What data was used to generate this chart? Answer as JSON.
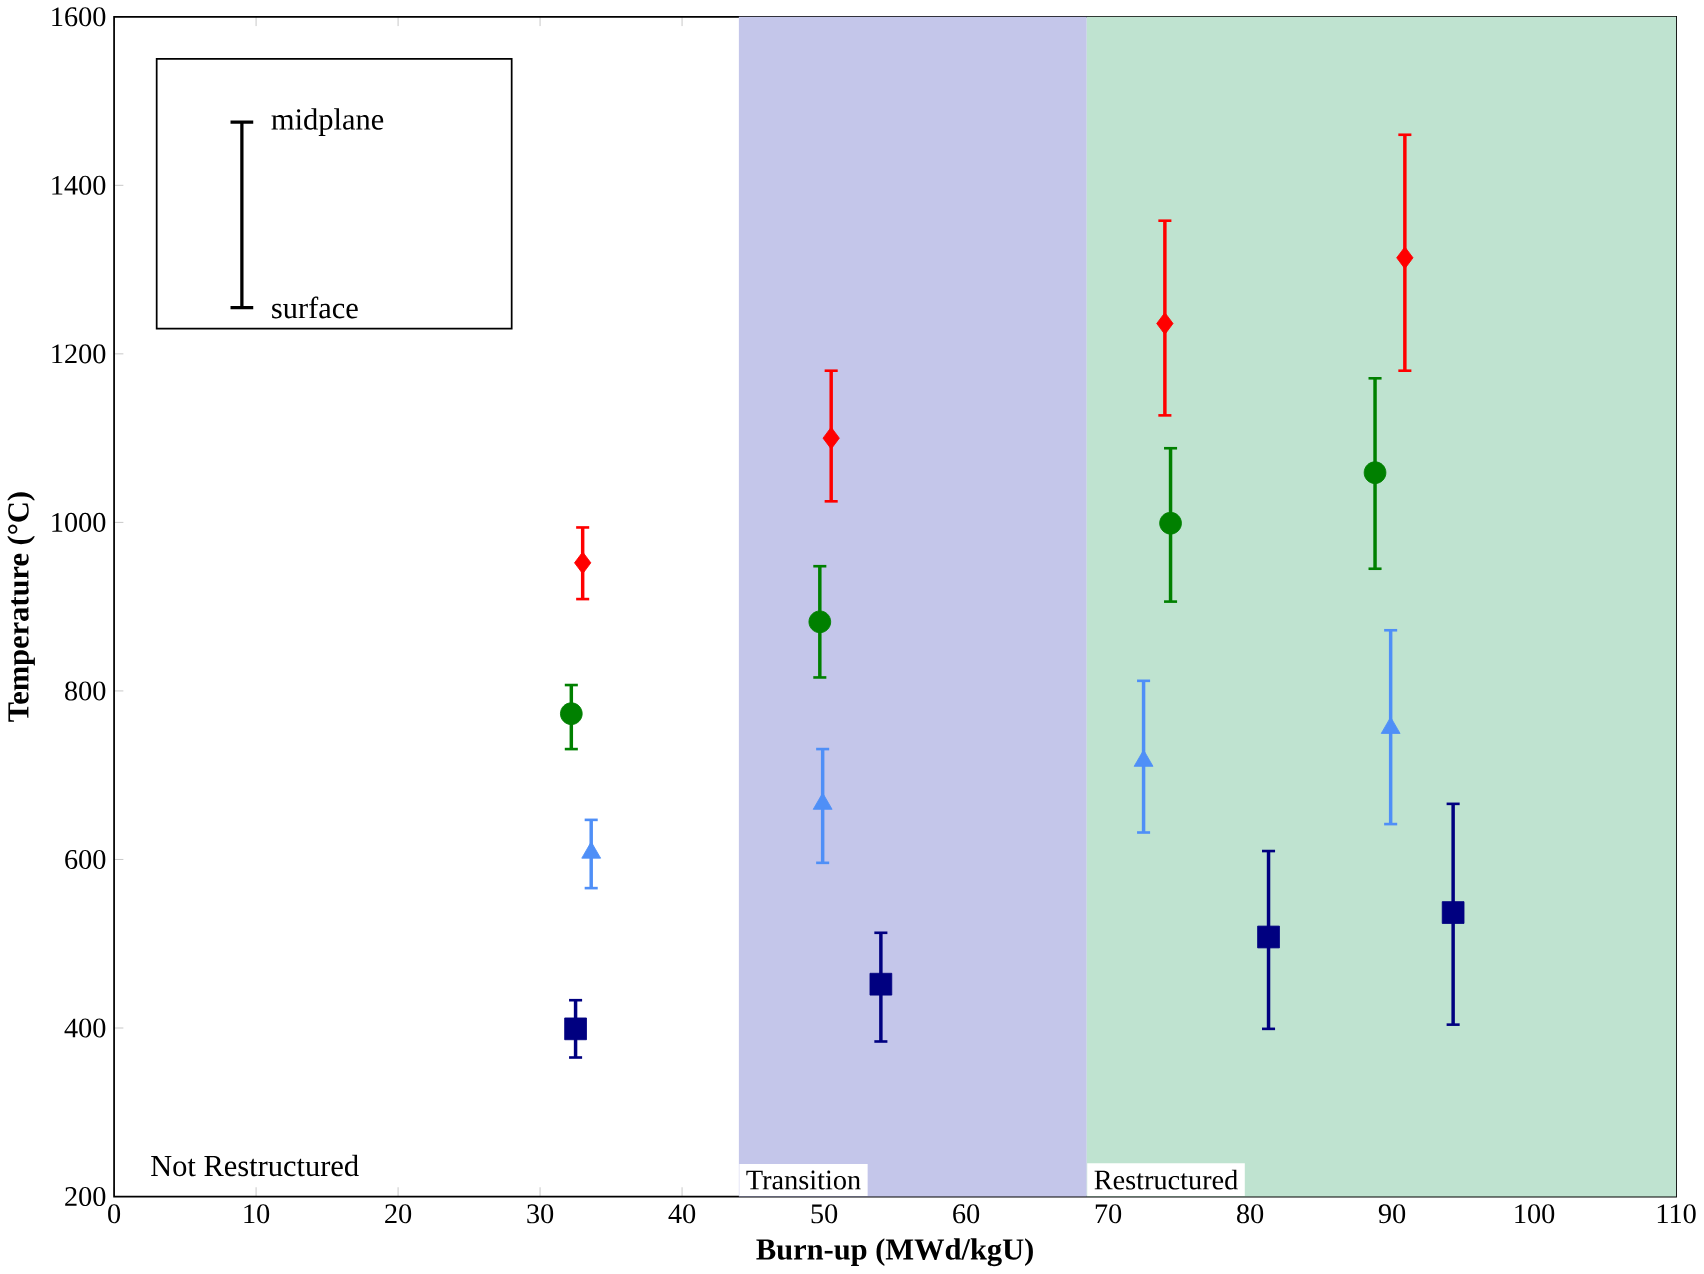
{
  "chart_data": {
    "type": "scatter",
    "xlabel": "Burn-up (MWd/kgU)",
    "ylabel": "Temperature (°C)",
    "xlim": [
      0,
      110
    ],
    "xticks": [
      0,
      10,
      20,
      30,
      40,
      50,
      60,
      70,
      80,
      90,
      100,
      110
    ],
    "ylim": [
      200,
      1600
    ],
    "yticks": [
      200,
      400,
      600,
      800,
      1000,
      1200,
      1400,
      1600
    ],
    "grid": false,
    "series": [
      {
        "color": "#ff0000",
        "marker": "diamond",
        "x": [
          33.0,
          50.5,
          74.0,
          90.9
        ],
        "values": [
          952,
          1100,
          1236,
          1314
        ],
        "errors": [
          [
            909,
            994
          ],
          [
            1025,
            1180
          ],
          [
            1127,
            1358
          ],
          [
            1180,
            1460
          ]
        ]
      },
      {
        "color": "#008000",
        "marker": "circle",
        "x": [
          32.2,
          49.7,
          74.4,
          88.8
        ],
        "values": [
          773,
          882,
          999,
          1059
        ],
        "errors": [
          [
            731,
            807
          ],
          [
            816,
            948
          ],
          [
            906,
            1088
          ],
          [
            945,
            1171
          ]
        ]
      },
      {
        "color": "#4f8ff7",
        "marker": "triangle",
        "x": [
          33.6,
          49.9,
          72.5,
          89.9
        ],
        "values": [
          608,
          666,
          717,
          756
        ],
        "errors": [
          [
            566,
            647
          ],
          [
            596,
            731
          ],
          [
            632,
            812
          ],
          [
            642,
            872
          ]
        ]
      },
      {
        "color": "#000080",
        "marker": "square",
        "x": [
          32.5,
          54.0,
          81.3,
          94.3
        ],
        "values": [
          399,
          452,
          508,
          537
        ],
        "errors": [
          [
            365,
            433
          ],
          [
            384,
            513
          ],
          [
            399,
            610
          ],
          [
            404,
            666
          ]
        ]
      }
    ],
    "bands": [
      {
        "axis": "x",
        "from": 44,
        "to": 68.5,
        "label": "Transition",
        "color": "#c4c6ea"
      },
      {
        "axis": "x",
        "from": 68.5,
        "to": 110,
        "label": "Restructured",
        "color": "#bfe3d0"
      }
    ],
    "annotations": [
      "midplane",
      "surface",
      "Not Restructured"
    ]
  }
}
